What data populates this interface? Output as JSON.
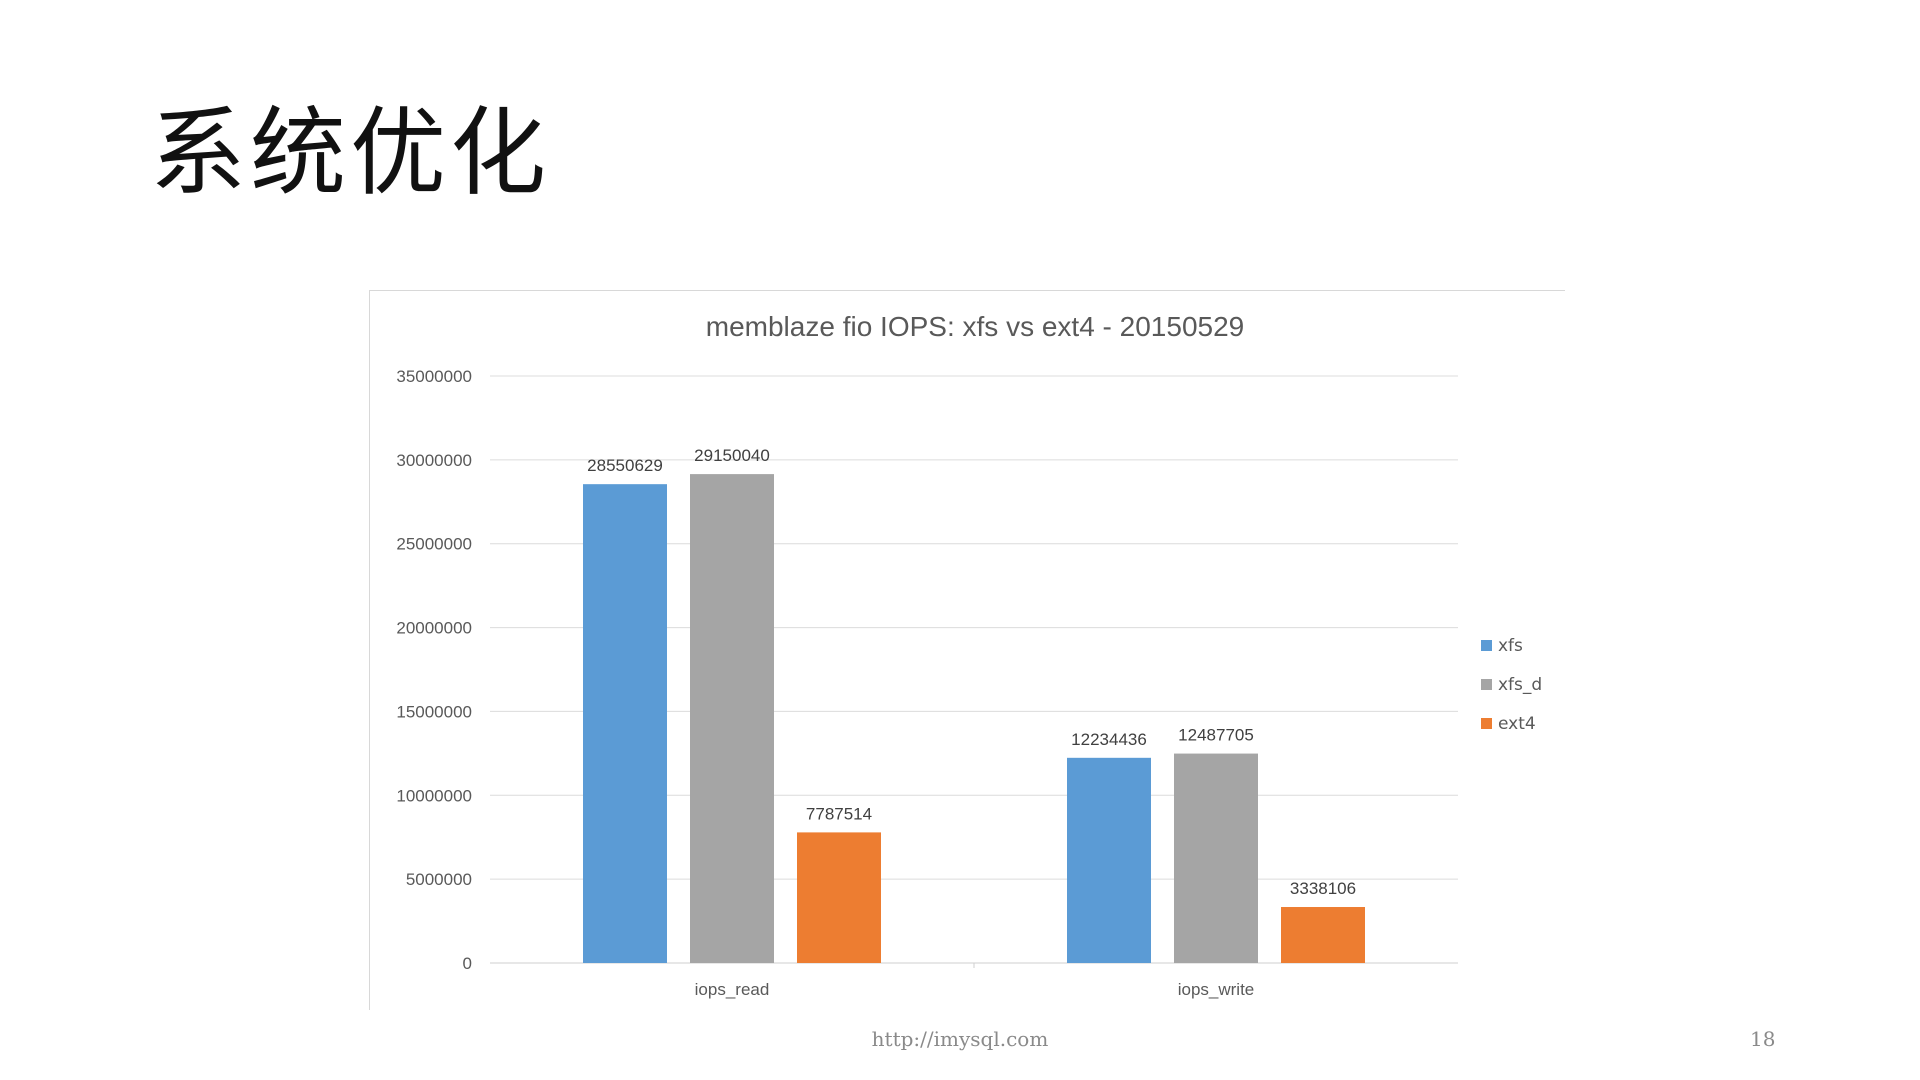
{
  "slide": {
    "title": "系统优化",
    "footer_url": "http://imysql.com",
    "page_number": "18"
  },
  "chart_data": {
    "type": "bar",
    "title": "memblaze fio IOPS: xfs vs ext4 - 20150529",
    "categories": [
      "iops_read",
      "iops_write"
    ],
    "series": [
      {
        "name": "xfs",
        "values": [
          28550629,
          12234436
        ],
        "color": "#5b9bd5"
      },
      {
        "name": "xfs_d",
        "values": [
          29150040,
          12487705
        ],
        "color": "#a5a5a5"
      },
      {
        "name": "ext4",
        "values": [
          7787514,
          3338106
        ],
        "color": "#ed7d31"
      }
    ],
    "ylim": [
      0,
      35000000
    ],
    "yticks": [
      0,
      5000000,
      10000000,
      15000000,
      20000000,
      25000000,
      30000000,
      35000000
    ],
    "grid": true,
    "legend_position": "right"
  }
}
